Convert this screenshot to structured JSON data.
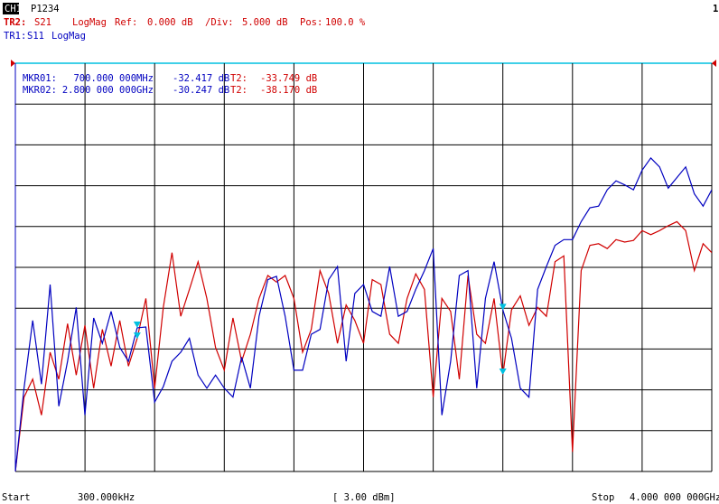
{
  "chart_data": {
    "type": "line",
    "channel": "CH1",
    "port": "P1234",
    "window": "1",
    "scale": {
      "ref_label": "Ref:",
      "ref": "0.000 dB",
      "div_label": "/Div:",
      "div": "5.000 dB",
      "pos_label": "Pos:",
      "pos": "100.0 %"
    },
    "footer": {
      "start_label": "Start",
      "start": "300.000kHz",
      "power": "[ 3.00 dBm]",
      "stop_label": "Stop",
      "stop": "4.000 000 000GHz"
    },
    "xlim": [
      0.3,
      4000
    ],
    "ylim": [
      -50,
      0
    ],
    "xdivisions": 10,
    "ydivisions": 10,
    "x": [
      0.3,
      50,
      100,
      150,
      200,
      250,
      300,
      350,
      400,
      450,
      500,
      550,
      600,
      650,
      700,
      750,
      800,
      850,
      900,
      950,
      1000,
      1050,
      1100,
      1150,
      1200,
      1250,
      1300,
      1350,
      1400,
      1450,
      1500,
      1550,
      1600,
      1650,
      1700,
      1750,
      1800,
      1850,
      1900,
      1950,
      2000,
      2050,
      2100,
      2150,
      2200,
      2250,
      2300,
      2350,
      2400,
      2450,
      2500,
      2550,
      2600,
      2650,
      2700,
      2750,
      2800,
      2850,
      2900,
      2950,
      3000,
      3050,
      3100,
      3150,
      3200,
      3250,
      3300,
      3350,
      3400,
      3450,
      3500,
      3550,
      3600,
      3650,
      3700,
      3750,
      3800,
      3850,
      3900,
      3950,
      4000
    ],
    "series": [
      {
        "trace": "TR1:",
        "name": "S11",
        "format": "LogMag",
        "color": "#0000c0",
        "values": [
          -50.0,
          -39.8,
          -31.5,
          -39.3,
          -27.1,
          -42.0,
          -36.5,
          -29.9,
          -43.1,
          -31.2,
          -34.3,
          -30.4,
          -34.8,
          -36.5,
          -32.4,
          -32.3,
          -41.5,
          -39.6,
          -36.5,
          -35.4,
          -33.7,
          -38.2,
          -39.8,
          -38.2,
          -39.8,
          -40.9,
          -36.0,
          -39.8,
          -31.0,
          -26.5,
          -26.1,
          -31.0,
          -37.6,
          -37.6,
          -33.2,
          -32.6,
          -26.5,
          -24.9,
          -36.5,
          -28.2,
          -27.1,
          -30.4,
          -31.0,
          -24.9,
          -31.0,
          -30.4,
          -27.7,
          -25.4,
          -22.7,
          -43.1,
          -36.5,
          -26.0,
          -25.4,
          -39.8,
          -28.8,
          -24.3,
          -30.2,
          -33.7,
          -39.8,
          -40.9,
          -27.7,
          -24.9,
          -22.3,
          -21.6,
          -21.6,
          -19.4,
          -17.7,
          -17.5,
          -15.5,
          -14.4,
          -14.9,
          -15.5,
          -13.1,
          -11.6,
          -12.7,
          -15.3,
          -14.0,
          -12.7,
          -16.0,
          -17.5,
          -15.5
        ]
      },
      {
        "trace": "TR2:",
        "name": "S21",
        "format": "LogMag",
        "color": "#d00000",
        "values": [
          -50.0,
          -40.9,
          -38.7,
          -43.1,
          -35.4,
          -38.7,
          -31.9,
          -38.2,
          -32.1,
          -39.8,
          -32.6,
          -37.1,
          -31.5,
          -37.1,
          -33.7,
          -28.8,
          -39.8,
          -29.9,
          -23.2,
          -31.0,
          -27.7,
          -24.3,
          -28.8,
          -34.8,
          -37.6,
          -31.2,
          -36.5,
          -33.2,
          -28.8,
          -26.0,
          -26.8,
          -26.0,
          -28.8,
          -35.4,
          -32.6,
          -25.4,
          -28.2,
          -34.3,
          -29.6,
          -31.5,
          -34.3,
          -26.5,
          -27.1,
          -33.2,
          -34.3,
          -28.8,
          -25.8,
          -27.7,
          -40.9,
          -28.8,
          -30.4,
          -38.7,
          -26.0,
          -33.2,
          -34.3,
          -28.8,
          -38.2,
          -30.2,
          -28.5,
          -32.1,
          -29.9,
          -31.0,
          -24.3,
          -23.6,
          -47.6,
          -25.4,
          -22.3,
          -22.1,
          -22.7,
          -21.6,
          -21.9,
          -21.7,
          -20.5,
          -21.0,
          -20.5,
          -19.9,
          -19.4,
          -20.5,
          -25.4,
          -22.1,
          -23.2
        ]
      }
    ],
    "markers": [
      {
        "label": "MKR01:",
        "x": 700,
        "x_label": "700.000 000MHz",
        "values": [
          -32.417,
          -33.749
        ],
        "value_labels": [
          "-32.417 dB",
          "-33.749 dB"
        ],
        "trace2_label": "T2:"
      },
      {
        "label": "MKR02:",
        "x": 2800,
        "x_label": "2.800 000 000GHz",
        "values": [
          -30.247,
          -38.17
        ],
        "value_labels": [
          "-30.247 dB",
          "-38.170 dB"
        ],
        "trace2_label": "T2:"
      }
    ]
  }
}
